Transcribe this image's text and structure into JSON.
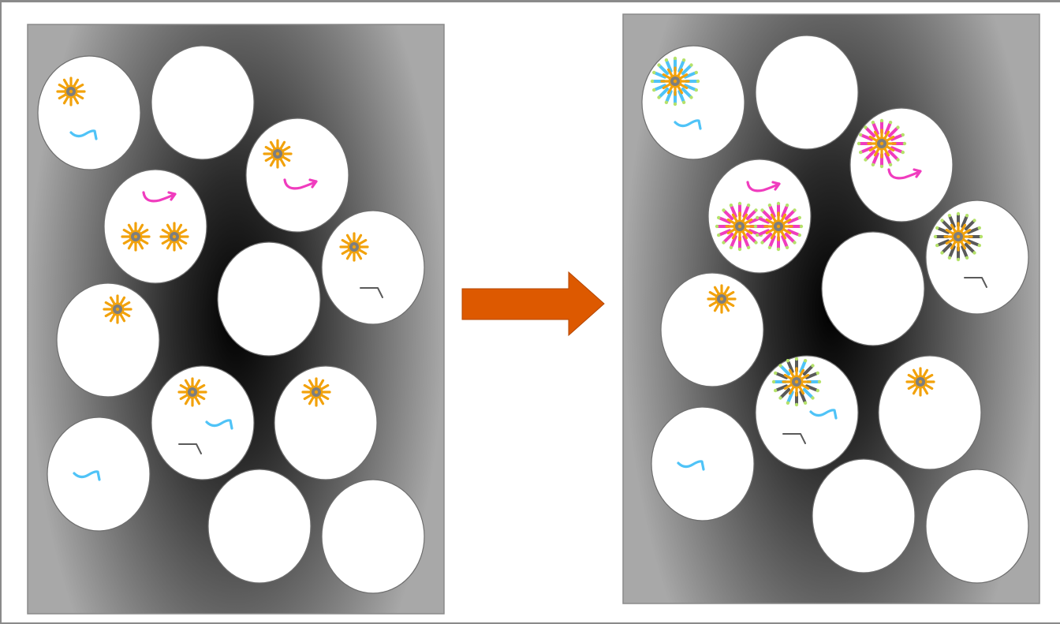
{
  "colors": {
    "background": "#ffffff",
    "border": "#8a8a8a",
    "panel_dark": "#000000",
    "panel_light": "#a8a8a8",
    "droplet_fill": "#ffffff",
    "droplet_stroke": "#6e6e6e",
    "arrow": "#dd5900",
    "bead_ray": "#f2a20c",
    "bead_ring": "#f2a20c",
    "bead_core": "#7e7e7e",
    "probe_blue": "#4fc3f7",
    "probe_magenta": "#f03cbe",
    "probe_gray": "#5a5a5a",
    "probe_tip": "#b5e26a"
  },
  "panels": [
    {
      "name": "before",
      "droplets": [
        {
          "beads": [
            {
              "label": "none"
            }
          ],
          "probes": [
            "blue"
          ]
        },
        {
          "beads": [],
          "probes": []
        },
        {
          "beads": [
            {
              "label": "none"
            }
          ],
          "probes": [
            "magenta"
          ]
        },
        {
          "beads": [
            {
              "label": "none"
            },
            {
              "label": "none"
            }
          ],
          "probes": [
            "magenta"
          ]
        },
        {
          "beads": [],
          "probes": []
        },
        {
          "beads": [
            {
              "label": "none"
            }
          ],
          "probes": [
            "gray"
          ]
        },
        {
          "beads": [
            {
              "label": "none"
            }
          ],
          "probes": []
        },
        {
          "beads": [
            {
              "label": "none"
            }
          ],
          "probes": [
            "blue",
            "gray"
          ]
        },
        {
          "beads": [
            {
              "label": "none"
            }
          ],
          "probes": []
        },
        {
          "beads": [],
          "probes": [
            "blue"
          ]
        },
        {
          "beads": [],
          "probes": []
        },
        {
          "beads": [],
          "probes": []
        }
      ]
    },
    {
      "name": "after",
      "droplets": [
        {
          "beads": [
            {
              "label": "blue"
            }
          ],
          "probes": [
            "blue"
          ]
        },
        {
          "beads": [],
          "probes": []
        },
        {
          "beads": [
            {
              "label": "magenta"
            }
          ],
          "probes": [
            "magenta"
          ]
        },
        {
          "beads": [
            {
              "label": "magenta"
            },
            {
              "label": "magenta"
            }
          ],
          "probes": [
            "magenta"
          ]
        },
        {
          "beads": [],
          "probes": []
        },
        {
          "beads": [
            {
              "label": "gray"
            }
          ],
          "probes": [
            "gray"
          ]
        },
        {
          "beads": [
            {
              "label": "none"
            }
          ],
          "probes": []
        },
        {
          "beads": [
            {
              "label": "mixed"
            }
          ],
          "probes": [
            "blue",
            "gray"
          ]
        },
        {
          "beads": [
            {
              "label": "none"
            }
          ],
          "probes": []
        },
        {
          "beads": [],
          "probes": [
            "blue"
          ]
        },
        {
          "beads": [],
          "probes": []
        },
        {
          "beads": [],
          "probes": []
        }
      ]
    }
  ],
  "arrow": {
    "direction": "right"
  }
}
